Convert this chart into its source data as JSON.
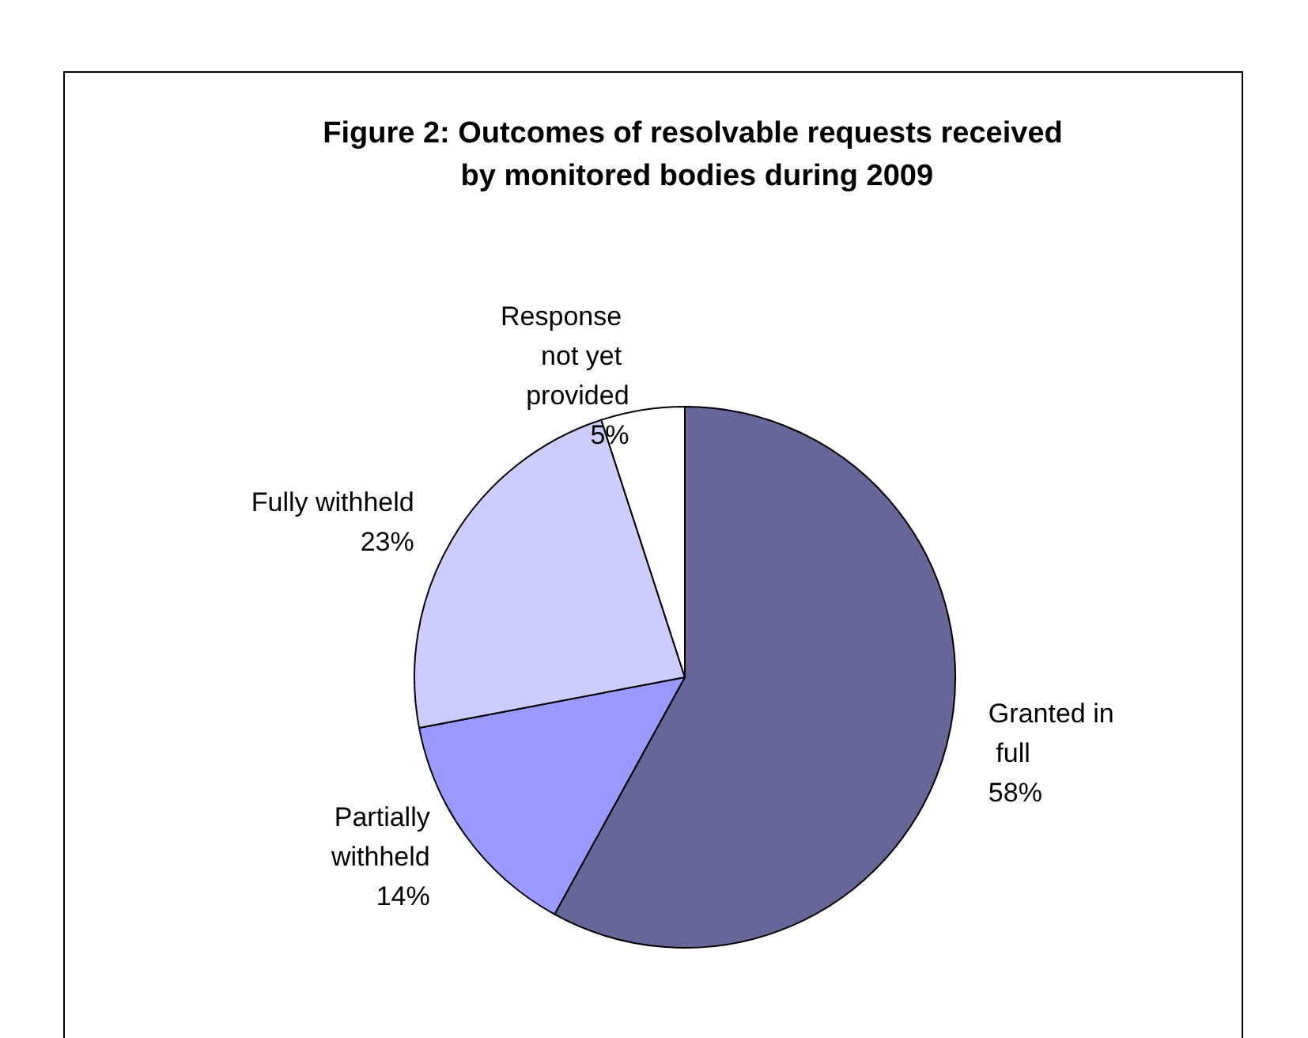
{
  "chart_data": {
    "type": "pie",
    "title": "Figure 2: Outcomes of resolvable requests received by monitored bodies during 2009",
    "categories": [
      "Granted in full",
      "Partially withheld",
      "Fully withheld",
      "Response not yet provided"
    ],
    "values": [
      58,
      14,
      23,
      5
    ],
    "colors": [
      "#666699",
      "#9999ff",
      "#ccccff",
      "#ffffff"
    ],
    "value_labels": [
      "58%",
      "14%",
      "23%",
      "5%"
    ],
    "legend": false
  }
}
